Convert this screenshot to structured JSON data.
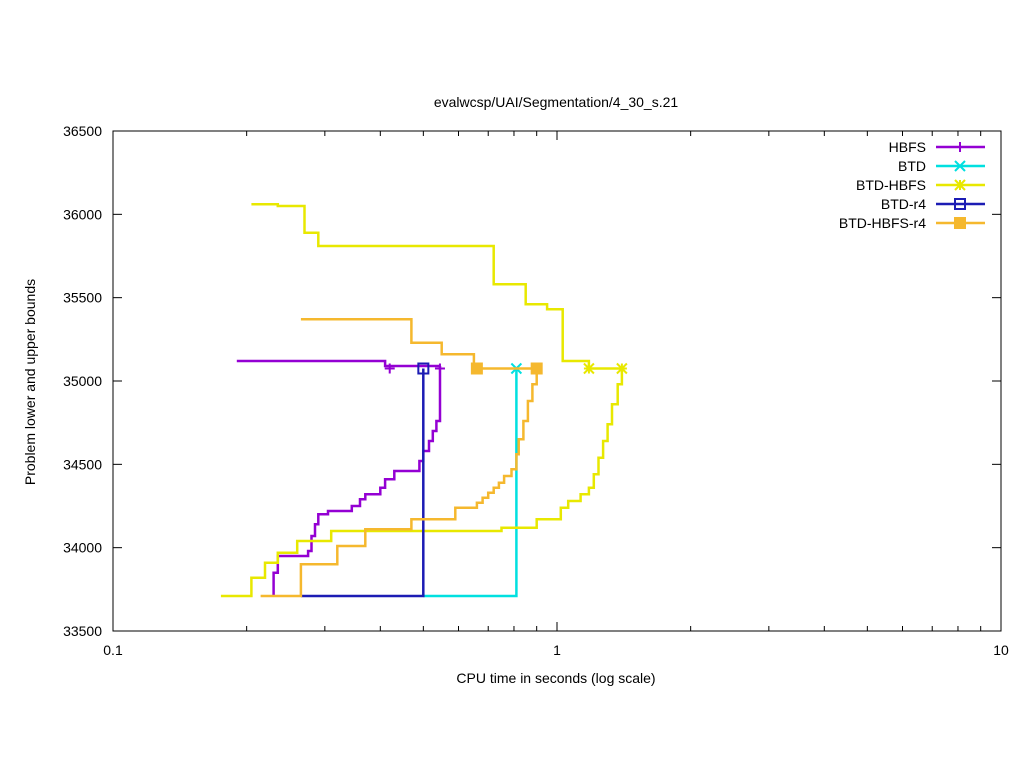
{
  "chart_data": {
    "type": "line",
    "title": "evalwcsp/UAI/Segmentation/4_30_s.21",
    "xlabel": "CPU time in seconds (log scale)",
    "ylabel": "Problem lower and upper bounds",
    "xscale": "log",
    "xlim": [
      0.1,
      10
    ],
    "ylim": [
      33500,
      36500
    ],
    "xticks": [
      {
        "value": 0.1,
        "label": "0.1"
      },
      {
        "value": 1,
        "label": "1"
      },
      {
        "value": 10,
        "label": "10"
      }
    ],
    "yticks": [
      33500,
      34000,
      34500,
      35000,
      35500,
      36000,
      36500
    ],
    "legend_position": "top-right",
    "grid": false,
    "series": [
      {
        "name": "HBFS",
        "color": "#9400d3",
        "marker": "plus",
        "upper": [
          [
            0.19,
            35120
          ],
          [
            0.41,
            35120
          ],
          [
            0.41,
            35090
          ],
          [
            0.545,
            35090
          ]
        ],
        "lower": [
          [
            0.23,
            33710
          ],
          [
            0.23,
            33850
          ],
          [
            0.235,
            33850
          ],
          [
            0.235,
            33950
          ],
          [
            0.275,
            33950
          ],
          [
            0.275,
            33980
          ],
          [
            0.28,
            33980
          ],
          [
            0.28,
            34070
          ],
          [
            0.285,
            34070
          ],
          [
            0.285,
            34140
          ],
          [
            0.29,
            34140
          ],
          [
            0.29,
            34200
          ],
          [
            0.305,
            34200
          ],
          [
            0.305,
            34220
          ],
          [
            0.345,
            34220
          ],
          [
            0.345,
            34250
          ],
          [
            0.36,
            34250
          ],
          [
            0.36,
            34290
          ],
          [
            0.37,
            34290
          ],
          [
            0.37,
            34320
          ],
          [
            0.4,
            34320
          ],
          [
            0.4,
            34360
          ],
          [
            0.41,
            34360
          ],
          [
            0.41,
            34410
          ],
          [
            0.43,
            34410
          ],
          [
            0.43,
            34460
          ],
          [
            0.49,
            34460
          ],
          [
            0.49,
            34520
          ],
          [
            0.5,
            34520
          ],
          [
            0.5,
            34580
          ],
          [
            0.515,
            34580
          ],
          [
            0.515,
            34640
          ],
          [
            0.525,
            34640
          ],
          [
            0.525,
            34700
          ],
          [
            0.535,
            34700
          ],
          [
            0.535,
            34760
          ],
          [
            0.545,
            34760
          ],
          [
            0.545,
            35090
          ]
        ],
        "marker_points": [
          [
            0.42,
            35075
          ],
          [
            0.545,
            35075
          ]
        ]
      },
      {
        "name": "BTD",
        "color": "#00e0e0",
        "marker": "cross",
        "upper": [],
        "lower": [
          [
            0.5,
            33710
          ],
          [
            0.81,
            33710
          ],
          [
            0.81,
            35075
          ]
        ],
        "marker_points": [
          [
            0.81,
            35075
          ]
        ]
      },
      {
        "name": "BTD-HBFS",
        "color": "#e8e800",
        "marker": "star",
        "upper": [
          [
            0.205,
            36060
          ],
          [
            0.235,
            36060
          ],
          [
            0.235,
            36050
          ],
          [
            0.27,
            36050
          ],
          [
            0.27,
            35890
          ],
          [
            0.29,
            35890
          ],
          [
            0.29,
            35810
          ],
          [
            0.72,
            35810
          ],
          [
            0.72,
            35580
          ],
          [
            0.85,
            35580
          ],
          [
            0.85,
            35460
          ],
          [
            0.95,
            35460
          ],
          [
            0.95,
            35430
          ],
          [
            1.03,
            35430
          ],
          [
            1.03,
            35120
          ],
          [
            1.18,
            35120
          ],
          [
            1.18,
            35075
          ],
          [
            1.4,
            35075
          ]
        ],
        "lower": [
          [
            0.175,
            33710
          ],
          [
            0.205,
            33710
          ],
          [
            0.205,
            33820
          ],
          [
            0.22,
            33820
          ],
          [
            0.22,
            33910
          ],
          [
            0.235,
            33910
          ],
          [
            0.235,
            33970
          ],
          [
            0.26,
            33970
          ],
          [
            0.26,
            34040
          ],
          [
            0.31,
            34040
          ],
          [
            0.31,
            34100
          ],
          [
            0.75,
            34100
          ],
          [
            0.75,
            34120
          ],
          [
            0.9,
            34120
          ],
          [
            0.9,
            34170
          ],
          [
            1.02,
            34170
          ],
          [
            1.02,
            34240
          ],
          [
            1.06,
            34240
          ],
          [
            1.06,
            34280
          ],
          [
            1.13,
            34280
          ],
          [
            1.13,
            34320
          ],
          [
            1.18,
            34320
          ],
          [
            1.18,
            34360
          ],
          [
            1.21,
            34360
          ],
          [
            1.21,
            34440
          ],
          [
            1.24,
            34440
          ],
          [
            1.24,
            34540
          ],
          [
            1.27,
            34540
          ],
          [
            1.27,
            34640
          ],
          [
            1.3,
            34640
          ],
          [
            1.3,
            34740
          ],
          [
            1.33,
            34740
          ],
          [
            1.33,
            34860
          ],
          [
            1.37,
            34860
          ],
          [
            1.37,
            34980
          ],
          [
            1.4,
            34980
          ],
          [
            1.4,
            35075
          ]
        ],
        "marker_points": [
          [
            1.18,
            35075
          ],
          [
            1.4,
            35075
          ]
        ]
      },
      {
        "name": "BTD-r4",
        "color": "#1c1cb4",
        "marker": "open-square",
        "upper": [],
        "lower": [
          [
            0.265,
            33710
          ],
          [
            0.5,
            33710
          ],
          [
            0.5,
            35075
          ]
        ],
        "marker_points": [
          [
            0.5,
            35075
          ]
        ]
      },
      {
        "name": "BTD-HBFS-r4",
        "color": "#f5b82e",
        "marker": "filled-square",
        "upper": [
          [
            0.265,
            35370
          ],
          [
            0.47,
            35370
          ],
          [
            0.47,
            35230
          ],
          [
            0.55,
            35230
          ],
          [
            0.55,
            35160
          ],
          [
            0.65,
            35160
          ],
          [
            0.65,
            35075
          ],
          [
            0.9,
            35075
          ]
        ],
        "lower": [
          [
            0.215,
            33710
          ],
          [
            0.265,
            33710
          ],
          [
            0.265,
            33900
          ],
          [
            0.32,
            33900
          ],
          [
            0.32,
            34010
          ],
          [
            0.37,
            34010
          ],
          [
            0.37,
            34110
          ],
          [
            0.47,
            34110
          ],
          [
            0.47,
            34170
          ],
          [
            0.59,
            34170
          ],
          [
            0.59,
            34240
          ],
          [
            0.66,
            34240
          ],
          [
            0.66,
            34270
          ],
          [
            0.68,
            34270
          ],
          [
            0.68,
            34300
          ],
          [
            0.7,
            34300
          ],
          [
            0.7,
            34330
          ],
          [
            0.72,
            34330
          ],
          [
            0.72,
            34360
          ],
          [
            0.74,
            34360
          ],
          [
            0.74,
            34390
          ],
          [
            0.76,
            34390
          ],
          [
            0.76,
            34430
          ],
          [
            0.79,
            34430
          ],
          [
            0.79,
            34470
          ],
          [
            0.81,
            34470
          ],
          [
            0.81,
            34560
          ],
          [
            0.82,
            34560
          ],
          [
            0.82,
            34650
          ],
          [
            0.84,
            34650
          ],
          [
            0.84,
            34760
          ],
          [
            0.86,
            34760
          ],
          [
            0.86,
            34880
          ],
          [
            0.88,
            34880
          ],
          [
            0.88,
            34980
          ],
          [
            0.9,
            34980
          ],
          [
            0.9,
            35075
          ]
        ],
        "marker_points": [
          [
            0.66,
            35075
          ],
          [
            0.9,
            35075
          ]
        ]
      }
    ]
  }
}
